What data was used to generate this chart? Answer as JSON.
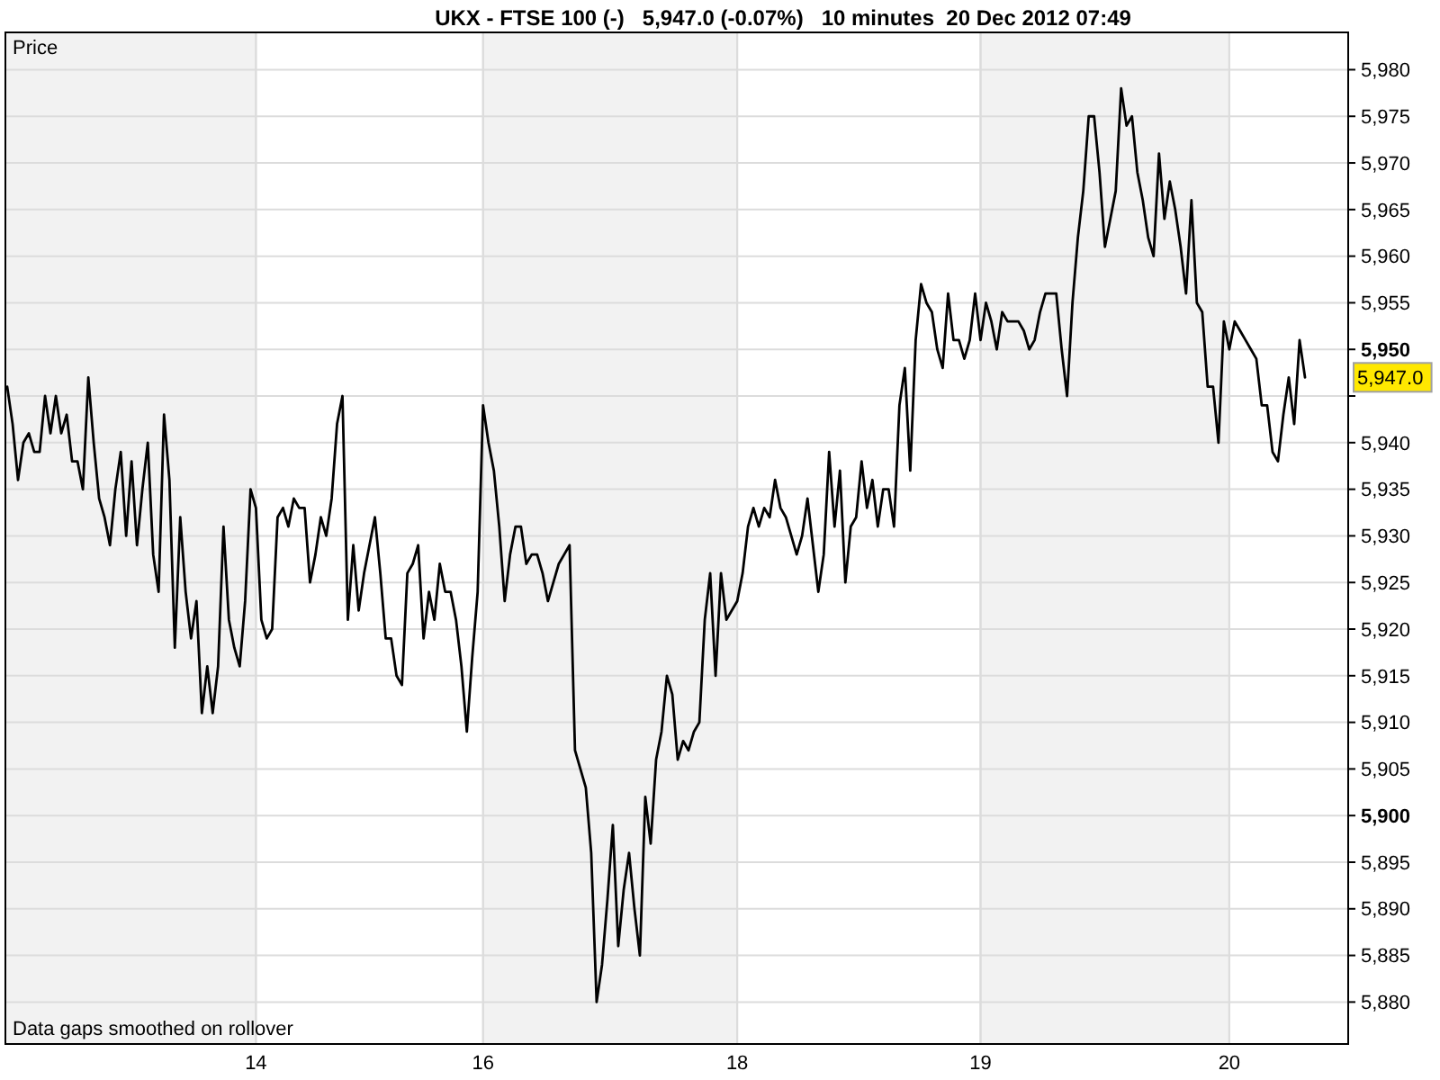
{
  "chart_data": {
    "type": "line",
    "title": "UKX - FTSE 100 (-)   5,947.0 (-0.07%)   10 minutes  20 Dec 2012 07:49",
    "ylabel": "Price",
    "color": "#000000",
    "categories": [
      null,
      null,
      null,
      null,
      null,
      null,
      null,
      null,
      null,
      null,
      null,
      null,
      null,
      null,
      null,
      null,
      null,
      null,
      null,
      null,
      null,
      null,
      null,
      null,
      null,
      null,
      null,
      null,
      null,
      null,
      null,
      null,
      null,
      null,
      null,
      null,
      null,
      null,
      null,
      null,
      null,
      null,
      null,
      null,
      null,
      null,
      "14",
      null,
      null,
      null,
      null,
      null,
      null,
      null,
      null,
      null,
      null,
      null,
      null,
      null,
      null,
      null,
      null,
      null,
      null,
      null,
      null,
      null,
      null,
      null,
      null,
      null,
      null,
      null,
      null,
      null,
      null,
      null,
      null,
      null,
      null,
      null,
      null,
      null,
      null,
      null,
      null,
      null,
      "16",
      null,
      null,
      null,
      null,
      null,
      null,
      null,
      null,
      null,
      null,
      null,
      null,
      null,
      null,
      null,
      null,
      null,
      null,
      null,
      null,
      null,
      null,
      null,
      null,
      null,
      null,
      null,
      null,
      null,
      null,
      null,
      null,
      null,
      null,
      null,
      null,
      null,
      null,
      null,
      null,
      null,
      null,
      null,
      null,
      null,
      null,
      "18",
      null,
      null,
      null,
      null,
      null,
      null,
      null,
      null,
      null,
      null,
      null,
      null,
      null,
      null,
      null,
      null,
      null,
      null,
      null,
      null,
      null,
      null,
      null,
      null,
      null,
      null,
      null,
      null,
      null,
      null,
      null,
      null,
      null,
      null,
      null,
      null,
      null,
      null,
      null,
      null,
      null,
      null,
      null,
      null,
      "19",
      null,
      null,
      null,
      null,
      null,
      null,
      null,
      null,
      null,
      null,
      null,
      null,
      null,
      null,
      null,
      null,
      null,
      null,
      null,
      null,
      null,
      null,
      null,
      null,
      null,
      null,
      null,
      null,
      null,
      null,
      null,
      null,
      null,
      null,
      null,
      null,
      null,
      null,
      null,
      null,
      null,
      null,
      null,
      null,
      null,
      "20",
      null,
      null,
      null,
      null,
      null,
      null,
      null,
      null,
      null,
      null,
      null,
      null,
      null,
      null
    ],
    "values": [
      5946,
      5942,
      5936,
      5940,
      5941,
      5939,
      5939,
      5945,
      5941,
      5945,
      5941,
      5943,
      5938,
      5938,
      5935,
      5947,
      5940,
      5934,
      5932,
      5929,
      5935,
      5939,
      5930,
      5938,
      5929,
      5935,
      5940,
      5928,
      5924,
      5943,
      5936,
      5918,
      5932,
      5924,
      5919,
      5923,
      5911,
      5916,
      5911,
      5916,
      5931,
      5921,
      5918,
      5916,
      5923,
      5935,
      5933,
      5921,
      5919,
      5920,
      5932,
      5933,
      5931,
      5934,
      5933,
      5933,
      5925,
      5928,
      5932,
      5930,
      5934,
      5942,
      5945,
      5921,
      5929,
      5922,
      5926,
      5929,
      5932,
      5926,
      5919,
      5919,
      5915,
      5914,
      5926,
      5927,
      5929,
      5919,
      5924,
      5921,
      5927,
      5924,
      5924,
      5921,
      5916,
      5909,
      5917,
      5924,
      5944,
      5940,
      5937,
      5931,
      5923,
      5928,
      5931,
      5931,
      5927,
      5928,
      5928,
      5926,
      5923,
      5925,
      5927,
      5928,
      5929,
      5907,
      5905,
      5903,
      5896,
      5880,
      5884,
      5891,
      5899,
      5886,
      5892,
      5896,
      5890,
      5885,
      5902,
      5897,
      5906,
      5909,
      5915,
      5913,
      5906,
      5908,
      5907,
      5909,
      5910,
      5921,
      5926,
      5915,
      5926,
      5921,
      5922,
      5923,
      5926,
      5931,
      5933,
      5931,
      5933,
      5932,
      5936,
      5933,
      5932,
      5930,
      5928,
      5930,
      5934,
      5929,
      5924,
      5928,
      5939,
      5931,
      5937,
      5925,
      5931,
      5932,
      5938,
      5933,
      5936,
      5931,
      5935,
      5935,
      5931,
      5944,
      5948,
      5937,
      5951,
      5957,
      5955,
      5954,
      5950,
      5948,
      5956,
      5951,
      5951,
      5949,
      5951,
      5956,
      5951,
      5955,
      5953,
      5950,
      5954,
      5953,
      5953,
      5953,
      5952,
      5950,
      5951,
      5954,
      5956,
      5956,
      5956,
      5950,
      5945,
      5955,
      5962,
      5967,
      5975,
      5975,
      5969,
      5961,
      5964,
      5967,
      5978,
      5974,
      5975,
      5969,
      5966,
      5962,
      5960,
      5971,
      5964,
      5968,
      5965,
      5961,
      5956,
      5966,
      5955,
      5954,
      5946,
      5946,
      5940,
      5953,
      5950,
      5953,
      5952,
      5951,
      5950,
      5949,
      5944,
      5944,
      5939,
      5938,
      5943,
      5947,
      5942,
      5951,
      5947
    ],
    "ylim": [
      5875.5,
      5984
    ],
    "yticks": [
      {
        "value": 5880,
        "label": "5,880"
      },
      {
        "value": 5885,
        "label": "5,885"
      },
      {
        "value": 5890,
        "label": "5,890"
      },
      {
        "value": 5895,
        "label": "5,895"
      },
      {
        "value": 5900,
        "label": "5,900"
      },
      {
        "value": 5905,
        "label": "5,905"
      },
      {
        "value": 5910,
        "label": "5,910"
      },
      {
        "value": 5915,
        "label": "5,915"
      },
      {
        "value": 5920,
        "label": "5,920"
      },
      {
        "value": 5925,
        "label": "5,925"
      },
      {
        "value": 5930,
        "label": "5,930"
      },
      {
        "value": 5935,
        "label": "5,935"
      },
      {
        "value": 5940,
        "label": "5,940"
      },
      {
        "value": 5945,
        "label": null
      },
      {
        "value": 5950,
        "label": "5,950"
      },
      {
        "value": 5955,
        "label": "5,955"
      },
      {
        "value": 5960,
        "label": "5,960"
      },
      {
        "value": 5965,
        "label": "5,965"
      },
      {
        "value": 5970,
        "label": "5,970"
      },
      {
        "value": 5975,
        "label": "5,975"
      },
      {
        "value": 5980,
        "label": "5,980"
      }
    ],
    "grid": true,
    "bands": [
      {
        "axis": "x",
        "from": "16",
        "to": "18",
        "color": "#f2f2f2"
      },
      {
        "axis": "x",
        "from": "19",
        "to": "20",
        "color": "#f2f2f2"
      }
    ],
    "annotations": [
      "Data gaps smoothed on rollover",
      "5,947.0"
    ]
  }
}
